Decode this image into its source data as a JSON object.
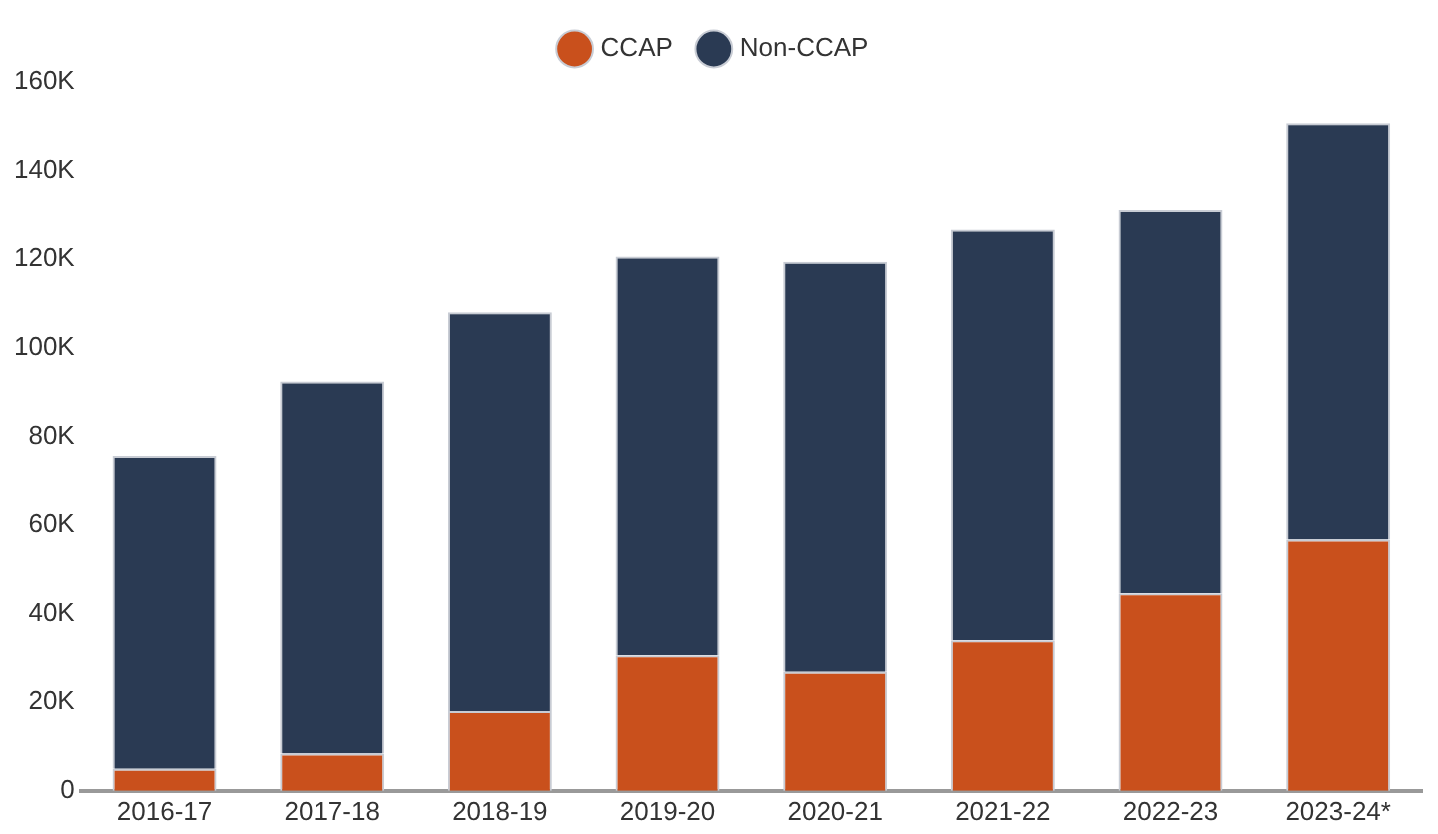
{
  "chart_data": {
    "type": "bar",
    "stacked": true,
    "legend": "top",
    "grid": false,
    "categories": [
      "2016-17",
      "2017-18",
      "2018-19",
      "2019-20",
      "2020-21",
      "2021-22",
      "2022-23",
      "2023-24*"
    ],
    "series": [
      {
        "name": "CCAP",
        "color": "#c9501c",
        "values": [
          5000,
          8400,
          18000,
          30600,
          26900,
          34000,
          44600,
          56700
        ]
      },
      {
        "name": "Non-CCAP",
        "color": "#2a3a53",
        "values": [
          70600,
          84000,
          90000,
          90000,
          92500,
          92700,
          86500,
          94000
        ]
      }
    ],
    "ylim": [
      0,
      160000
    ],
    "yticks": [
      {
        "value": 0,
        "label": "0"
      },
      {
        "value": 20000,
        "label": "20K"
      },
      {
        "value": 40000,
        "label": "40K"
      },
      {
        "value": 60000,
        "label": "60K"
      },
      {
        "value": 80000,
        "label": "80K"
      },
      {
        "value": 100000,
        "label": "100K"
      },
      {
        "value": 120000,
        "label": "120K"
      },
      {
        "value": 140000,
        "label": "140K"
      },
      {
        "value": 160000,
        "label": "160K"
      }
    ]
  }
}
